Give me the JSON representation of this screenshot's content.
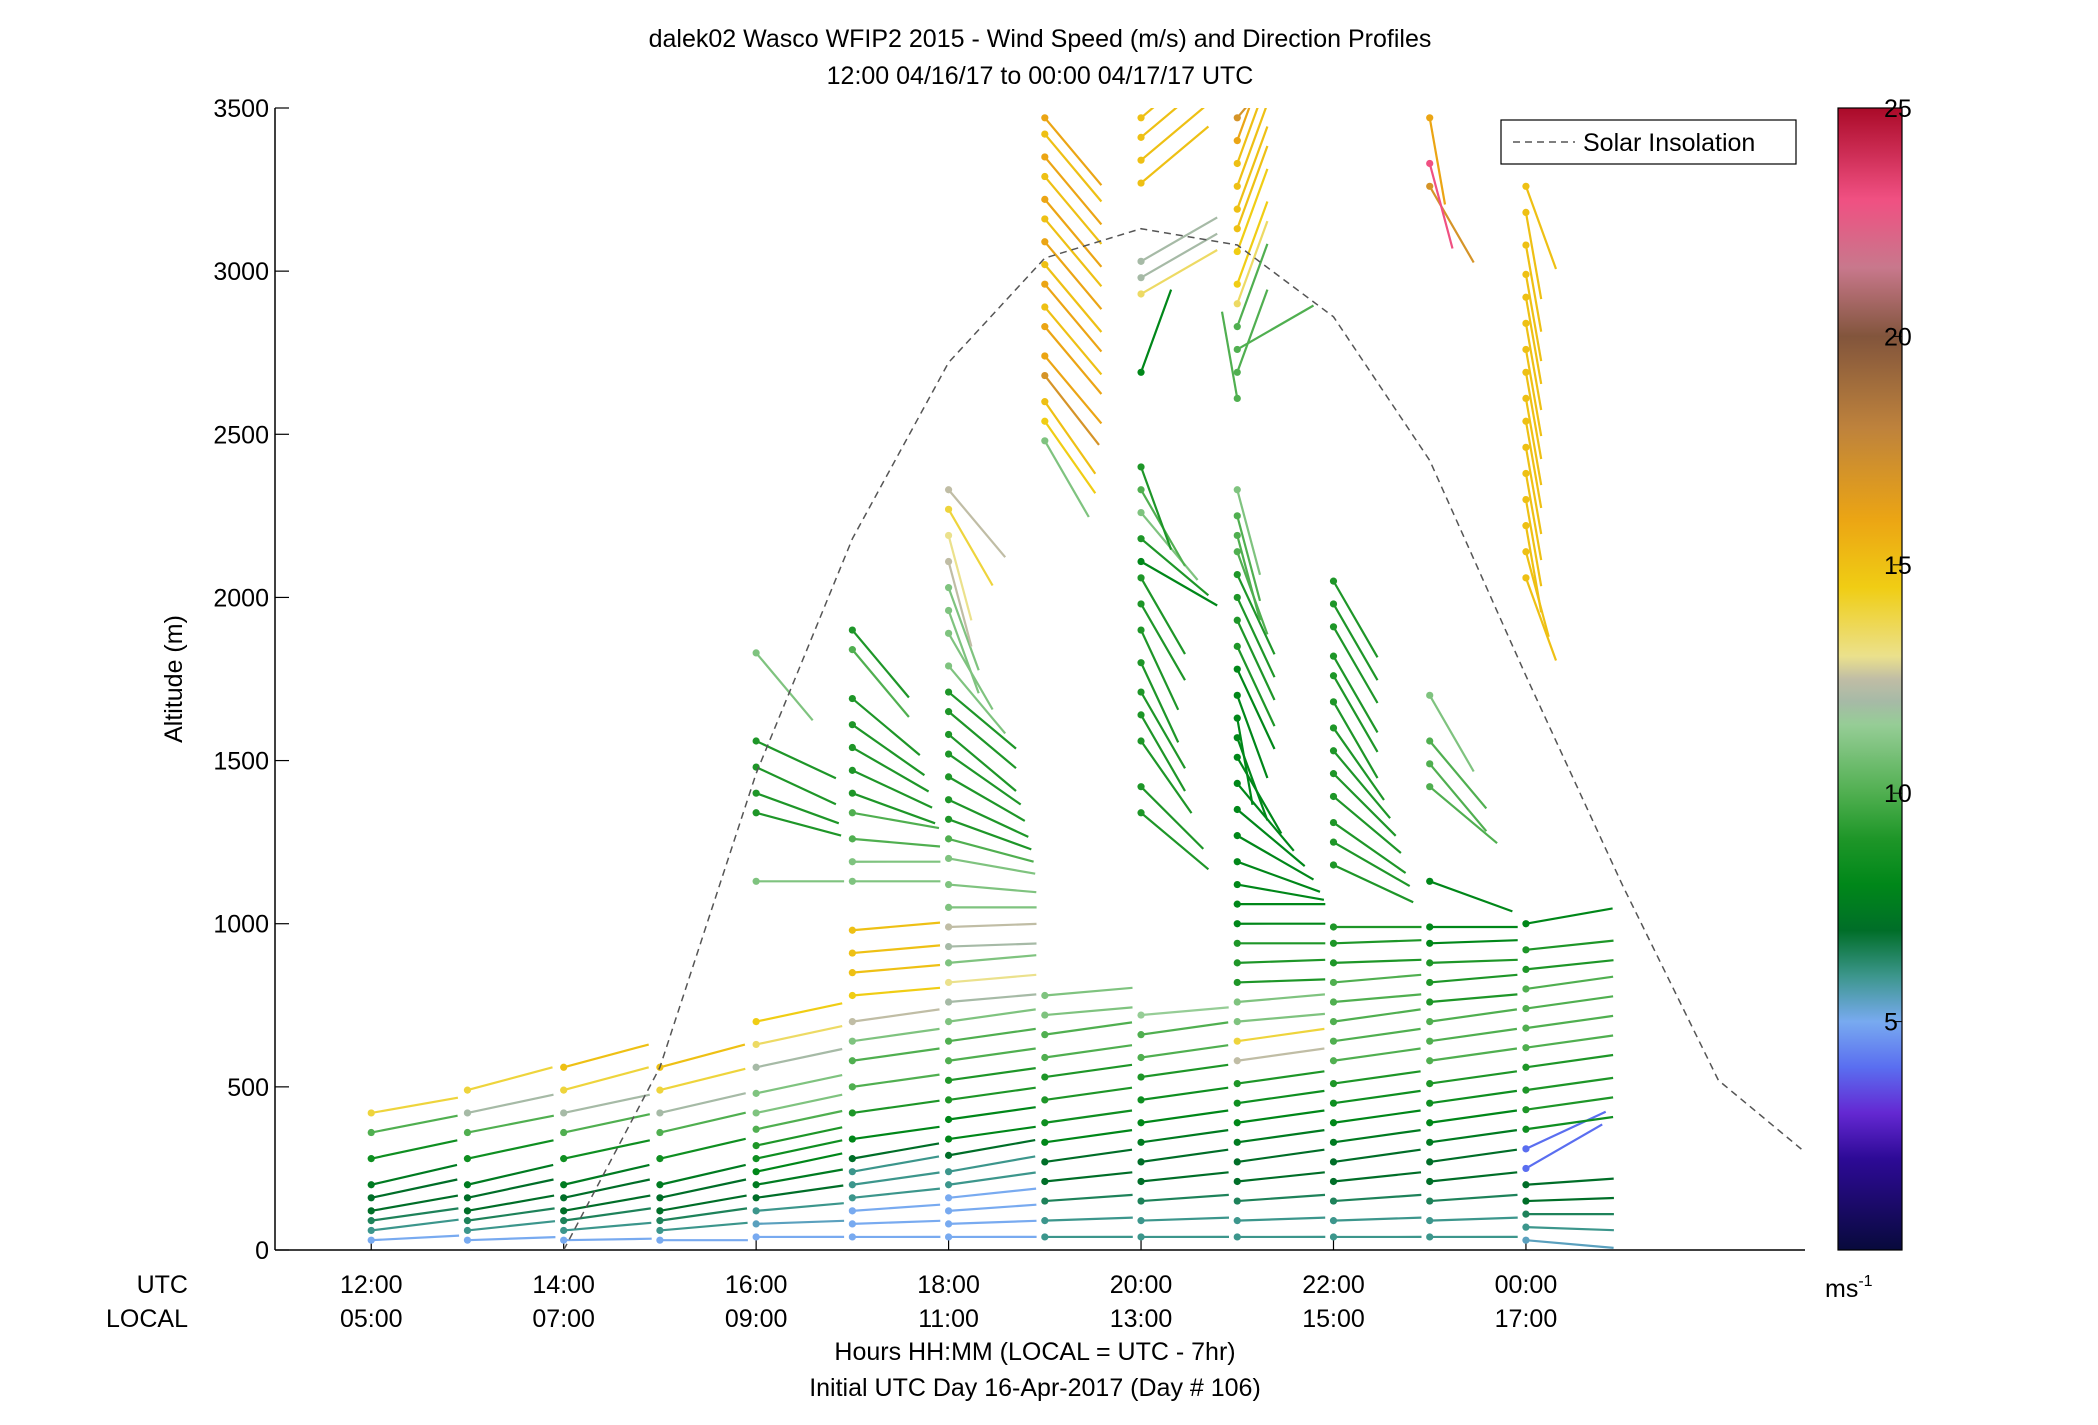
{
  "chart_data": {
    "type": "scatter",
    "title": "dalek02 Wasco WFIP2 2015 - Wind Speed (m/s) and Direction Profiles",
    "subtitle": "12:00 04/16/17 to 00:00 04/17/17  UTC",
    "ylabel": "Altitude (m)",
    "xlabel": "Hours HH:MM  (LOCAL = UTC - 7hr)",
    "xlabel2": "Initial UTC Day 16-Apr-2017 (Day # 106)",
    "row_labels": {
      "utc": "UTC",
      "local": "LOCAL"
    },
    "xlim": [
      11,
      26.9
    ],
    "ylim": [
      0,
      3500
    ],
    "yticks": [
      0,
      500,
      1000,
      1500,
      2000,
      2500,
      3000,
      3500
    ],
    "xticks": [
      {
        "value": 12,
        "utc": "12:00",
        "local": "05:00"
      },
      {
        "value": 14,
        "utc": "14:00",
        "local": "07:00"
      },
      {
        "value": 16,
        "utc": "16:00",
        "local": "09:00"
      },
      {
        "value": 18,
        "utc": "18:00",
        "local": "11:00"
      },
      {
        "value": 20,
        "utc": "20:00",
        "local": "13:00"
      },
      {
        "value": 22,
        "utc": "22:00",
        "local": "15:00"
      },
      {
        "value": 24,
        "utc": "00:00",
        "local": "17:00"
      }
    ],
    "legend": {
      "label": "Solar Insolation",
      "position": "top-right"
    },
    "colorbar": {
      "min": 0,
      "max": 25,
      "ticks": [
        5,
        10,
        15,
        20,
        25
      ],
      "unit_base": "ms",
      "unit_exp": "-1"
    },
    "solar_insolation": {
      "hours": [
        14,
        15,
        16,
        17,
        18,
        19,
        20,
        21,
        22,
        23,
        24,
        25,
        26,
        26.9
      ],
      "altitude_equiv": [
        0,
        560,
        1460,
        2180,
        2720,
        3040,
        3130,
        3080,
        2860,
        2420,
        1760,
        1120,
        520,
        300
      ]
    },
    "profiles": [
      {
        "hour": 12.0,
        "altitude": [
          30,
          60,
          90,
          120,
          160,
          200,
          280,
          360,
          420
        ],
        "speed": [
          5.0,
          6.0,
          6.5,
          7.0,
          7.0,
          7.5,
          8.5,
          10.0,
          14.0
        ],
        "direction": [
          267,
          263,
          262,
          260,
          258,
          257,
          258,
          259,
          260
        ]
      },
      {
        "hour": 13.0,
        "altitude": [
          30,
          60,
          90,
          120,
          160,
          200,
          280,
          360,
          420,
          490
        ],
        "speed": [
          5.0,
          6.0,
          6.5,
          7.0,
          7.0,
          7.5,
          8.5,
          10.0,
          12.0,
          14.0
        ],
        "direction": [
          268,
          264,
          262,
          260,
          258,
          257,
          258,
          259,
          258,
          255
        ]
      },
      {
        "hour": 14.0,
        "altitude": [
          30,
          60,
          90,
          120,
          160,
          200,
          280,
          360,
          420,
          490,
          560
        ],
        "speed": [
          5.0,
          6.0,
          6.5,
          7.0,
          7.0,
          7.5,
          8.5,
          10.0,
          12.0,
          14.0,
          15.0
        ],
        "direction": [
          269,
          265,
          262,
          260,
          258,
          257,
          258,
          258,
          258,
          255,
          255
        ]
      },
      {
        "hour": 15.0,
        "altitude": [
          30,
          60,
          90,
          120,
          160,
          200,
          280,
          360,
          420,
          490,
          560
        ],
        "speed": [
          5.0,
          6.0,
          6.5,
          7.0,
          7.0,
          7.5,
          8.5,
          10.0,
          12.0,
          14.0,
          15.0
        ],
        "direction": [
          270,
          265,
          262,
          260,
          258,
          257,
          257,
          257,
          257,
          256,
          255
        ]
      },
      {
        "hour": 16.0,
        "altitude": [
          40,
          80,
          120,
          160,
          200,
          240,
          280,
          320,
          370,
          420,
          480,
          560,
          630,
          700,
          1130,
          1340,
          1400,
          1480,
          1560,
          1830
        ],
        "speed": [
          5.0,
          5.5,
          6.0,
          7.0,
          7.5,
          8.0,
          8.5,
          9.0,
          10.0,
          11.0,
          11.0,
          12.0,
          13.5,
          14.5,
          11.0,
          9.0,
          9.0,
          9.0,
          9.0,
          11.0
        ],
        "direction": [
          270,
          268,
          265,
          262,
          260,
          258,
          258,
          258,
          258,
          258,
          258,
          258,
          258,
          258,
          270,
          285,
          290,
          295,
          295,
          320
        ]
      },
      {
        "hour": 17.0,
        "altitude": [
          40,
          80,
          120,
          160,
          200,
          240,
          280,
          340,
          420,
          500,
          580,
          640,
          700,
          780,
          850,
          910,
          980,
          1130,
          1190,
          1260,
          1340,
          1400,
          1470,
          1540,
          1610,
          1690,
          1840,
          1900
        ],
        "speed": [
          5.0,
          5.0,
          5.0,
          6.0,
          6.0,
          6.0,
          7.0,
          8.0,
          9.0,
          10.0,
          10.0,
          11.0,
          12.5,
          14.5,
          15.0,
          15.0,
          15.0,
          11.0,
          11.0,
          10.0,
          10.0,
          9.0,
          9.0,
          9.0,
          9.0,
          9.0,
          10.0,
          9.0
        ],
        "direction": [
          270,
          268,
          266,
          264,
          262,
          260,
          260,
          262,
          262,
          262,
          262,
          262,
          262,
          265,
          265,
          265,
          265,
          270,
          270,
          275,
          280,
          290,
          295,
          300,
          305,
          310,
          320,
          320
        ]
      },
      {
        "hour": 18.0,
        "altitude": [
          40,
          80,
          120,
          160,
          200,
          240,
          290,
          340,
          400,
          460,
          520,
          580,
          640,
          700,
          760,
          820,
          880,
          930,
          990,
          1050,
          1120,
          1200,
          1260,
          1320,
          1380,
          1450,
          1520,
          1580,
          1650,
          1710,
          1790,
          1890,
          1960,
          2030,
          2110,
          2190,
          2270,
          2330
        ],
        "speed": [
          5.0,
          5.0,
          5.0,
          5.0,
          6.0,
          6.0,
          7.0,
          8.0,
          8.0,
          9.0,
          9.0,
          10.0,
          10.0,
          11.0,
          12.0,
          13.0,
          11.0,
          12.0,
          12.5,
          11.0,
          11.0,
          11.0,
          10.0,
          9.0,
          9.0,
          9.0,
          9.0,
          9.0,
          9.0,
          9.0,
          11.0,
          11.0,
          11.0,
          11.0,
          12.5,
          13.0,
          14.0,
          12.5
        ],
        "direction": [
          270,
          268,
          266,
          264,
          262,
          260,
          260,
          262,
          262,
          262,
          262,
          262,
          262,
          262,
          265,
          265,
          265,
          268,
          268,
          270,
          275,
          280,
          285,
          290,
          295,
          300,
          305,
          310,
          310,
          310,
          320,
          330,
          340,
          340,
          345,
          345,
          330,
          320
        ]
      },
      {
        "hour": 19.0,
        "altitude": [
          40,
          90,
          150,
          210,
          270,
          330,
          390,
          460,
          530,
          590,
          660,
          720,
          780,
          2480,
          2540,
          2600,
          2680,
          2740,
          2830,
          2890,
          2960,
          3020,
          3090,
          3160,
          3220,
          3290,
          3350,
          3420,
          3470
        ],
        "speed": [
          6.0,
          6.0,
          6.5,
          7.0,
          7.0,
          8.0,
          8.5,
          9.0,
          9.0,
          10.0,
          10.0,
          11.0,
          11.0,
          11.0,
          14.5,
          15.0,
          17.0,
          16.0,
          16.0,
          15.0,
          16.0,
          15.0,
          16.0,
          15.0,
          16.0,
          15.0,
          16.0,
          15.0,
          16.0
        ],
        "direction": [
          270,
          268,
          266,
          264,
          262,
          262,
          262,
          262,
          262,
          262,
          262,
          265,
          265,
          330,
          325,
          325,
          322,
          320,
          320,
          320,
          320,
          320,
          320,
          320,
          320,
          320,
          320,
          320,
          320
        ]
      },
      {
        "hour": 20.0,
        "altitude": [
          40,
          90,
          150,
          210,
          270,
          330,
          390,
          460,
          530,
          590,
          660,
          720,
          1340,
          1420,
          1560,
          1640,
          1710,
          1800,
          1900,
          1980,
          2060,
          2110,
          2180,
          2260,
          2330,
          2400,
          2690,
          2930,
          2980,
          3030,
          3270,
          3340,
          3410,
          3470
        ],
        "speed": [
          6.0,
          6.0,
          6.5,
          7.0,
          7.0,
          7.5,
          8.0,
          8.5,
          9.0,
          10.0,
          10.0,
          11.5,
          9.0,
          9.0,
          9.0,
          9.0,
          9.0,
          9.0,
          9.0,
          9.0,
          9.0,
          8.0,
          9.0,
          11.0,
          10.0,
          9.0,
          8.0,
          13.5,
          12.0,
          12.0,
          15.0,
          15.0,
          15.0,
          15.0
        ],
        "direction": [
          270,
          268,
          266,
          264,
          262,
          262,
          262,
          262,
          262,
          262,
          262,
          265,
          310,
          315,
          325,
          330,
          330,
          335,
          335,
          330,
          330,
          300,
          310,
          320,
          330,
          340,
          200,
          240,
          240,
          240,
          230,
          230,
          230,
          230
        ]
      },
      {
        "hour": 21.0,
        "altitude": [
          40,
          90,
          150,
          210,
          270,
          330,
          390,
          450,
          510,
          580,
          640,
          700,
          760,
          820,
          880,
          940,
          1000,
          1060,
          1120,
          1190,
          1270,
          1350,
          1430,
          1510,
          1570,
          1630,
          1700,
          1780,
          1850,
          1930,
          2000,
          2070,
          2140,
          2190,
          2250,
          2330,
          2610,
          2690,
          2760,
          2830,
          2900,
          2960,
          3060,
          3130,
          3190,
          3260,
          3330,
          3400,
          3470
        ],
        "speed": [
          6.0,
          6.0,
          6.5,
          7.0,
          7.0,
          7.5,
          8.0,
          8.5,
          9.0,
          12.5,
          14.0,
          11.0,
          11.0,
          9.0,
          9.0,
          9.0,
          8.0,
          8.0,
          8.0,
          8.0,
          8.0,
          8.0,
          8.0,
          8.0,
          8.0,
          8.0,
          8.0,
          8.0,
          9.0,
          9.0,
          9.0,
          9.0,
          10.0,
          10.0,
          10.0,
          11.0,
          10.0,
          10.0,
          10.0,
          10.0,
          13.5,
          14.5,
          14.5,
          15.0,
          15.0,
          15.0,
          15.0,
          16.0,
          17.0
        ],
        "direction": [
          270,
          268,
          266,
          264,
          262,
          262,
          262,
          262,
          262,
          262,
          262,
          265,
          265,
          268,
          268,
          270,
          270,
          270,
          280,
          290,
          300,
          310,
          320,
          330,
          340,
          350,
          340,
          335,
          335,
          335,
          335,
          335,
          340,
          345,
          345,
          345,
          170,
          200,
          240,
          200,
          200,
          200,
          200,
          200,
          200,
          200,
          200,
          200,
          220
        ]
      },
      {
        "hour": 22.0,
        "altitude": [
          40,
          90,
          150,
          210,
          270,
          330,
          390,
          450,
          510,
          580,
          640,
          700,
          760,
          820,
          880,
          940,
          990,
          1180,
          1250,
          1310,
          1390,
          1460,
          1530,
          1600,
          1680,
          1760,
          1820,
          1910,
          1980,
          2050
        ],
        "speed": [
          6.0,
          6.0,
          6.5,
          7.0,
          7.0,
          7.5,
          8.0,
          8.5,
          9.0,
          10.0,
          10.0,
          10.0,
          10.0,
          10.0,
          9.0,
          9.0,
          9.0,
          9.0,
          9.0,
          9.0,
          9.0,
          9.0,
          9.0,
          9.0,
          9.0,
          9.0,
          9.0,
          9.0,
          9.0,
          9.0
        ],
        "direction": [
          270,
          268,
          266,
          264,
          262,
          262,
          262,
          262,
          262,
          262,
          262,
          262,
          265,
          265,
          268,
          268,
          270,
          295,
          300,
          305,
          310,
          315,
          320,
          325,
          330,
          330,
          330,
          330,
          330,
          330
        ]
      },
      {
        "hour": 23.0,
        "altitude": [
          40,
          90,
          150,
          210,
          270,
          330,
          390,
          450,
          510,
          580,
          640,
          700,
          760,
          820,
          880,
          940,
          990,
          1130,
          1420,
          1490,
          1560,
          1700,
          3260,
          3330,
          3470
        ],
        "speed": [
          6.0,
          6.0,
          6.5,
          7.0,
          7.0,
          7.5,
          8.0,
          8.5,
          9.0,
          10.0,
          10.0,
          10.0,
          9.0,
          9.0,
          9.0,
          8.0,
          8.0,
          8.0,
          10.0,
          10.0,
          10.0,
          11.0,
          17.0,
          23.0,
          16.0
        ],
        "direction": [
          270,
          268,
          266,
          264,
          262,
          262,
          262,
          262,
          262,
          262,
          262,
          262,
          265,
          265,
          268,
          268,
          270,
          290,
          310,
          320,
          320,
          330,
          330,
          345,
          350
        ]
      },
      {
        "hour": 24.0,
        "altitude": [
          30,
          70,
          110,
          150,
          200,
          250,
          310,
          370,
          430,
          490,
          560,
          620,
          680,
          740,
          800,
          860,
          920,
          1000,
          2060,
          2140,
          2220,
          2300,
          2380,
          2460,
          2540,
          2610,
          2690,
          2760,
          2840,
          2920,
          2990,
          3080,
          3180,
          3260
        ],
        "speed": [
          5.5,
          6.0,
          6.5,
          7.0,
          7.0,
          4.0,
          4.0,
          8.5,
          9.0,
          9.0,
          9.0,
          10.0,
          10.0,
          10.0,
          10.0,
          9.0,
          9.0,
          8.0,
          15.0,
          15.0,
          15.0,
          15.0,
          15.0,
          15.0,
          15.0,
          15.0,
          15.0,
          15.0,
          15.0,
          15.0,
          15.0,
          15.0,
          15.0,
          15.0
        ],
        "direction": [
          275,
          272,
          270,
          268,
          266,
          240,
          245,
          262,
          262,
          262,
          262,
          262,
          262,
          262,
          262,
          264,
          264,
          260,
          340,
          345,
          350,
          350,
          350,
          350,
          350,
          350,
          350,
          350,
          350,
          350,
          350,
          350,
          350,
          340
        ]
      }
    ]
  }
}
